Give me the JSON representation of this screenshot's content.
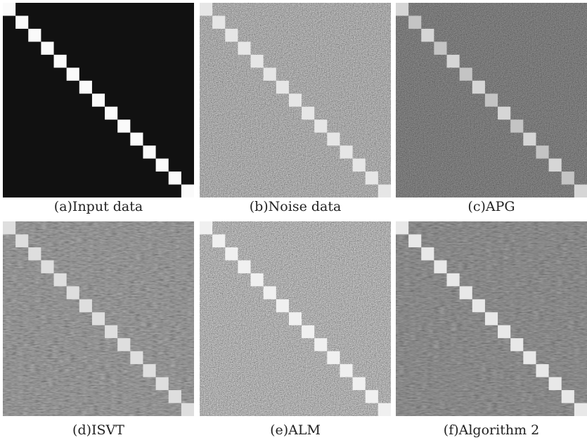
{
  "panels": [
    {
      "caption": "(a)Input data"
    },
    {
      "caption": "(b)Noise data"
    },
    {
      "caption": "(c)APG"
    },
    {
      "caption": "(d)ISVT"
    },
    {
      "caption": "(e)ALM"
    },
    {
      "caption": "(f)Algorithm 2"
    }
  ]
}
